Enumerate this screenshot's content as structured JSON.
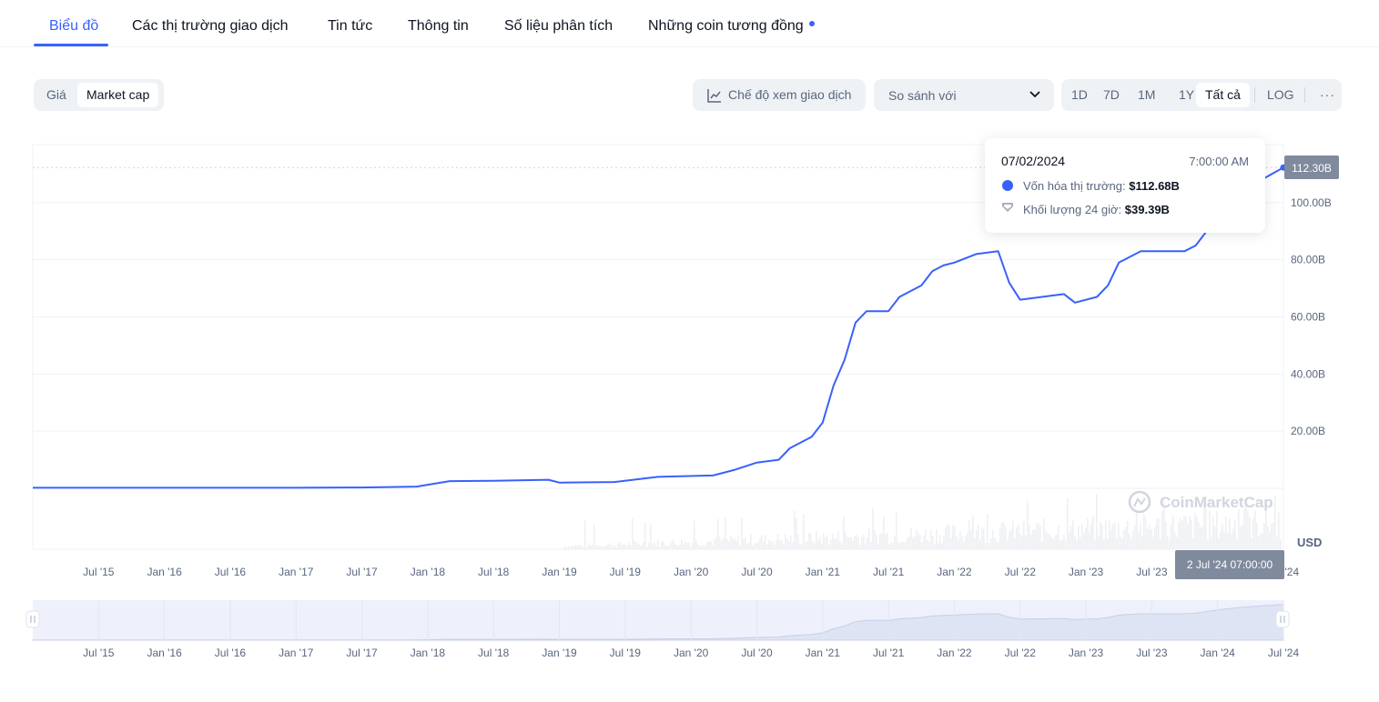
{
  "tabs": [
    "Biểu đồ",
    "Các thị trường giao dịch",
    "Tin tức",
    "Thông tin",
    "Số liệu phân tích",
    "Những coin tương đồng"
  ],
  "metric_toggle": [
    "Giá",
    "Market cap"
  ],
  "trade_view_label": "Chế độ xem giao dịch",
  "compare_label": "So sánh với",
  "ranges": [
    "1D",
    "7D",
    "1M",
    "1Y",
    "Tất cả",
    "LOG"
  ],
  "more_label": "···",
  "tooltip": {
    "date": "07/02/2024",
    "time": "7:00:00 AM",
    "mcap_label": "Vốn hóa thị trường:",
    "mcap_value": "$112.68B",
    "vol_label": "Khối lượng 24 giờ:",
    "vol_value": "$39.39B"
  },
  "crosshair_label": "2 Jul '24 07:00:00",
  "current_value_label": "112.30B",
  "currency_label": "USD",
  "watermark": "CoinMarketCap",
  "colors": {
    "line": "#3861fb",
    "accent": "#3861fb",
    "volume": "#eef0f3",
    "navigator_fill": "#dfe4f4"
  },
  "chart_data": {
    "type": "line",
    "ylim": [
      0,
      120
    ],
    "y_ticks": [
      20,
      40,
      60,
      80,
      100
    ],
    "y_tick_labels": [
      "20.00B",
      "40.00B",
      "60.00B",
      "80.00B",
      "100.00B"
    ],
    "x_tick_labels": [
      "Jul '15",
      "Jan '16",
      "Jul '16",
      "Jan '17",
      "Jul '17",
      "Jan '18",
      "Jul '18",
      "Jan '19",
      "Jul '19",
      "Jan '20",
      "Jul '20",
      "Jan '21",
      "Jul '21",
      "Jan '22",
      "Jul '22",
      "Jan '23",
      "Jul '23",
      "Jan '24",
      "Jul '24"
    ],
    "x_tick_dates": [
      "2015-07",
      "2016-01",
      "2016-07",
      "2017-01",
      "2017-07",
      "2018-01",
      "2018-07",
      "2019-01",
      "2019-07",
      "2020-01",
      "2020-07",
      "2021-01",
      "2021-07",
      "2022-01",
      "2022-07",
      "2023-01",
      "2023-07",
      "2024-01",
      "2024-07"
    ],
    "x_range": [
      "2015-01",
      "2024-07"
    ],
    "series": [
      {
        "name": "Vốn hóa thị trường",
        "points": [
          [
            "2015-01",
            0.2
          ],
          [
            "2016-01",
            0.2
          ],
          [
            "2017-01",
            0.2
          ],
          [
            "2017-07",
            0.3
          ],
          [
            "2017-12",
            0.6
          ],
          [
            "2018-03",
            2.5
          ],
          [
            "2018-07",
            2.6
          ],
          [
            "2018-12",
            3.0
          ],
          [
            "2019-01",
            2.0
          ],
          [
            "2019-06",
            2.2
          ],
          [
            "2019-10",
            4.0
          ],
          [
            "2020-03",
            4.5
          ],
          [
            "2020-05",
            6.5
          ],
          [
            "2020-07",
            9.0
          ],
          [
            "2020-09",
            10.0
          ],
          [
            "2020-10",
            14.0
          ],
          [
            "2020-12",
            18.0
          ],
          [
            "2021-01",
            23.0
          ],
          [
            "2021-02",
            36.0
          ],
          [
            "2021-03",
            45.0
          ],
          [
            "2021-04",
            58.0
          ],
          [
            "2021-05",
            62.0
          ],
          [
            "2021-07",
            62.0
          ],
          [
            "2021-08",
            67.0
          ],
          [
            "2021-10",
            71.0
          ],
          [
            "2021-11",
            76.0
          ],
          [
            "2021-12",
            78.0
          ],
          [
            "2022-01",
            79.0
          ],
          [
            "2022-03",
            82.0
          ],
          [
            "2022-05",
            83.0
          ],
          [
            "2022-06",
            72.0
          ],
          [
            "2022-07",
            66.0
          ],
          [
            "2022-09",
            67.0
          ],
          [
            "2022-11",
            68.0
          ],
          [
            "2022-12",
            65.0
          ],
          [
            "2023-02",
            67.0
          ],
          [
            "2023-03",
            71.0
          ],
          [
            "2023-04",
            79.0
          ],
          [
            "2023-06",
            83.0
          ],
          [
            "2023-08",
            83.0
          ],
          [
            "2023-10",
            83.0
          ],
          [
            "2023-11",
            85.0
          ],
          [
            "2024-01",
            95.0
          ],
          [
            "2024-03",
            103.0
          ],
          [
            "2024-05",
            108.0
          ],
          [
            "2024-07",
            112.3
          ]
        ]
      }
    ]
  }
}
